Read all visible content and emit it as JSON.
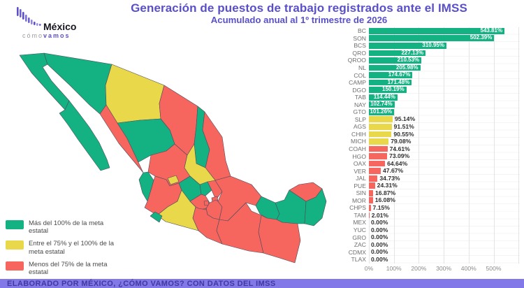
{
  "header": {
    "title": "Generación de puestos de trabajo registrados ante el IMSS",
    "subtitle": "Acumulado anual al 1º trimestre de 2026",
    "logo": {
      "name": "México",
      "tagline_gray": "cómo",
      "tagline_purple": "vamos"
    }
  },
  "colors": {
    "green": "#14b183",
    "yellow": "#e9d84a",
    "red": "#f6655e",
    "title": "#5950c9",
    "footer_bg": "#8278e8",
    "footer_text": "#43389f"
  },
  "legend": {
    "items": [
      {
        "category": "green",
        "label": "Más del 100% de la meta estatal"
      },
      {
        "category": "yellow",
        "label": "Entre el 75% y el 100% de la meta estatal"
      },
      {
        "category": "red",
        "label": "Menos del 75% de la meta estatal"
      }
    ]
  },
  "chart_data": {
    "type": "bar",
    "orientation": "horizontal",
    "categories": [
      "BC",
      "SON",
      "BCS",
      "QRO",
      "QROO",
      "NL",
      "COL",
      "CAMP",
      "DGO",
      "TAB",
      "NAY",
      "GTO",
      "SLP",
      "AGS",
      "CHIH",
      "MICH",
      "COAH",
      "HGO",
      "OAX",
      "VER",
      "JAL",
      "PUE",
      "SIN",
      "MOR",
      "CHPS",
      "TAM",
      "MEX",
      "YUC",
      "GRO",
      "ZAC",
      "CDMX",
      "TLAX"
    ],
    "values": [
      543.81,
      502.39,
      310.95,
      227.13,
      210.53,
      205.98,
      174.67,
      171.48,
      150.19,
      114.44,
      102.74,
      101.26,
      95.14,
      91.51,
      90.55,
      79.08,
      74.61,
      73.09,
      64.64,
      47.67,
      34.73,
      24.31,
      16.87,
      16.08,
      7.15,
      2.01,
      0.0,
      0.0,
      0.0,
      0.0,
      0.0,
      0.0
    ],
    "value_labels": [
      "543.81%",
      "502.39%",
      "310.95%",
      "227.13%",
      "210.53%",
      "205.98%",
      "174.67%",
      "171.48%",
      "150.19%",
      "114.44%",
      "102.74%",
      "101.26%",
      "95.14%",
      "91.51%",
      "90.55%",
      "79.08%",
      "74.61%",
      "73.09%",
      "64.64%",
      "47.67%",
      "34.73%",
      "24.31%",
      "16.87%",
      "16.08%",
      "7.15%",
      "2.01%",
      "0.00%",
      "0.00%",
      "0.00%",
      "0.00%",
      "0.00%",
      "0.00%"
    ],
    "classes": [
      "green",
      "green",
      "green",
      "green",
      "green",
      "green",
      "green",
      "green",
      "green",
      "green",
      "green",
      "green",
      "yellow",
      "yellow",
      "yellow",
      "yellow",
      "red",
      "red",
      "red",
      "red",
      "red",
      "red",
      "red",
      "red",
      "red",
      "red",
      "red",
      "red",
      "red",
      "red",
      "red",
      "red"
    ],
    "x_ticks": [
      0,
      100,
      200,
      300,
      400,
      500
    ],
    "x_tick_labels": [
      "0%",
      "100%",
      "200%",
      "300%",
      "400%",
      "500%"
    ],
    "x_gridlines": [
      0,
      100,
      200,
      300,
      400,
      500,
      600
    ],
    "xlim": [
      0,
      605
    ],
    "grid": true,
    "legend_position": "bottom-left-over-map"
  },
  "map": {
    "states": {
      "BC": "green",
      "BCS": "green",
      "SON": "green",
      "CHIH": "yellow",
      "COAH": "red",
      "NL": "green",
      "TAM": "red",
      "SIN": "red",
      "DGO": "green",
      "ZAC": "red",
      "SLP": "yellow",
      "NAY": "green",
      "AGS": "yellow",
      "JAL": "red",
      "GTO": "green",
      "QRO": "green",
      "HGO": "red",
      "MICH": "yellow",
      "COL": "green",
      "MEX": "red",
      "CDMX": "red",
      "TLAX": "red",
      "MOR": "red",
      "PUE": "red",
      "VER": "red",
      "GRO": "red",
      "OAX": "red",
      "CHPS": "red",
      "TAB": "green",
      "CAMP": "green",
      "YUC": "red",
      "QROO": "green"
    }
  },
  "footer": {
    "text": "ELABORADO POR MÉXICO, ¿CÓMO VAMOS? CON DATOS DEL IMSS"
  }
}
